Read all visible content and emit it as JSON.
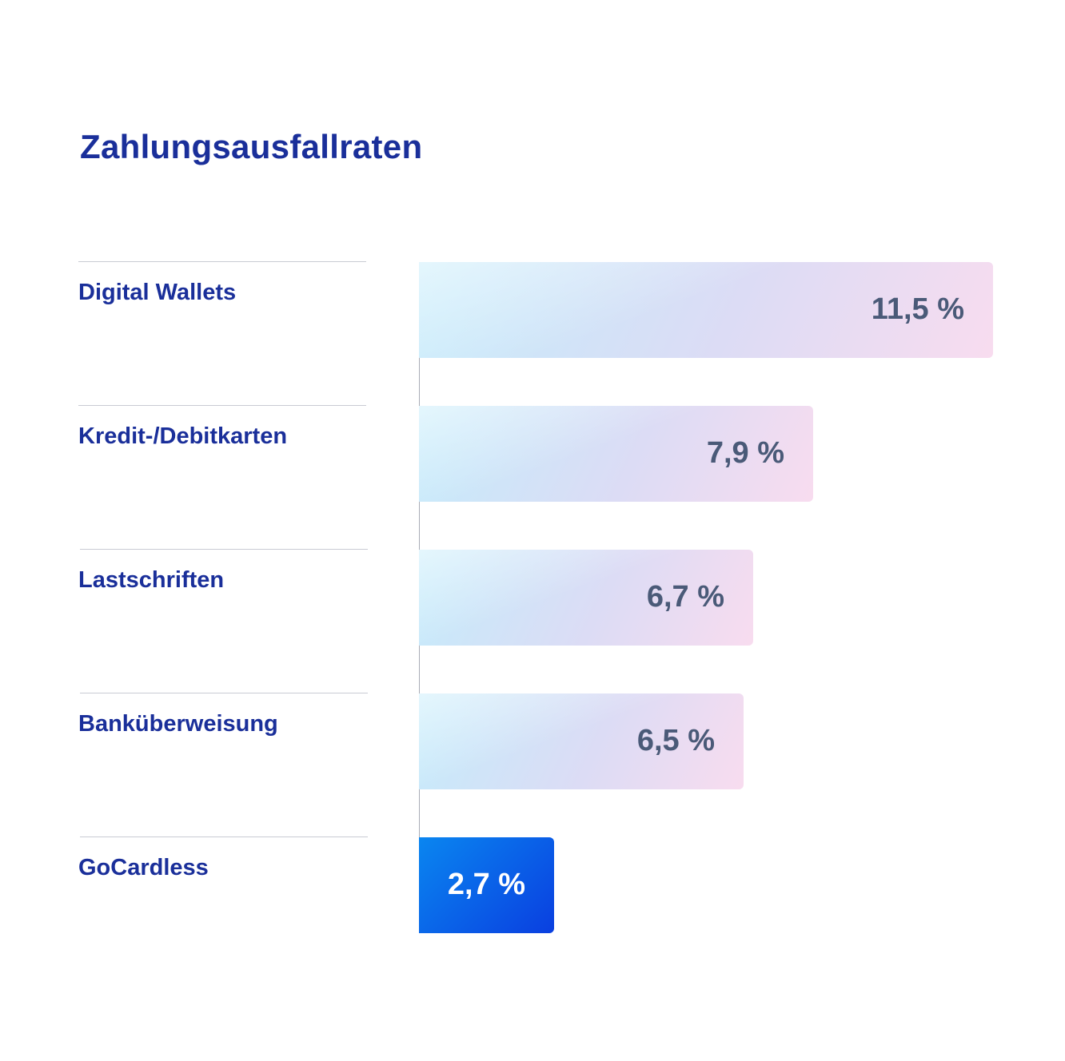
{
  "chart_data": {
    "type": "bar",
    "orientation": "horizontal",
    "title": "Zahlungsausfallraten",
    "categories": [
      "Digital Wallets",
      "Kredit-/Debitkarten",
      "Lastschriften",
      "Banküberweisung",
      "GoCardless"
    ],
    "values": [
      11.5,
      7.9,
      6.7,
      6.5,
      2.7
    ],
    "value_labels": [
      "11,5 %",
      "7,9 %",
      "6,7 %",
      "6,5 %",
      "2,7 %"
    ],
    "unit": "%",
    "xlim": [
      0,
      11.5
    ],
    "grid": false,
    "legend": "none",
    "highlight_category": "GoCardless"
  },
  "colors": {
    "title": "#1a2f9a",
    "label_text": "#1a2f9a",
    "bar_value_text": "#4a5a78",
    "highlight_bar_start": "#0a86f0",
    "highlight_bar_end": "#0a3fe0",
    "highlight_value_text": "#ffffff",
    "bar_gradient_light_blue": "#c4ecfb",
    "bar_gradient_lavender": "#dcdcf5",
    "bar_gradient_pink": "#f8dcef"
  }
}
